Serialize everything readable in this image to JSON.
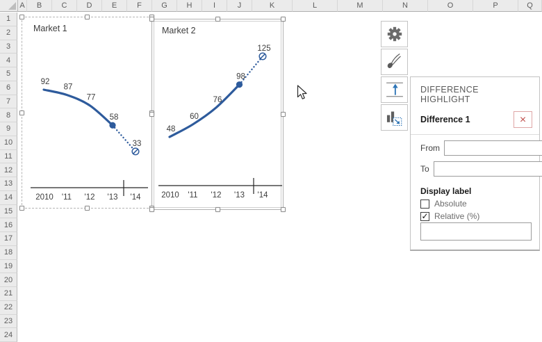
{
  "spreadsheet": {
    "column_headers": [
      "A",
      "B",
      "C",
      "D",
      "E",
      "F",
      "G",
      "H",
      "I",
      "J",
      "K",
      "L",
      "M",
      "N",
      "O",
      "P",
      "Q"
    ],
    "row_headers": [
      "1",
      "2",
      "3",
      "4",
      "5",
      "6",
      "7",
      "8",
      "9",
      "10",
      "11",
      "12",
      "13",
      "14",
      "15",
      "16",
      "17",
      "18",
      "19",
      "20",
      "21",
      "22",
      "23",
      "24"
    ]
  },
  "chart_data": [
    {
      "type": "line",
      "title": "Market 1",
      "categories": [
        "2010",
        "'11",
        "'12",
        "'13",
        "'14"
      ],
      "values": [
        92,
        87,
        77,
        58,
        33
      ],
      "data_labels": [
        "92",
        "87",
        "77",
        "58",
        "33"
      ],
      "solid_until_index": 3,
      "forecast_style": "dotted",
      "marker_at_index_3": "filled-circle",
      "marker_at_index_4": "circle-slash",
      "axis_tick_between": [
        "'13",
        "'14"
      ],
      "grid": "off",
      "legend": "none"
    },
    {
      "type": "line",
      "title": "Market 2",
      "categories": [
        "2010",
        "'11",
        "'12",
        "'13",
        "'14"
      ],
      "values": [
        48,
        60,
        76,
        98,
        125
      ],
      "data_labels": [
        "48",
        "60",
        "76",
        "98",
        "125"
      ],
      "solid_until_index": 3,
      "forecast_style": "dotted",
      "marker_at_index_3": "filled-circle",
      "marker_at_index_4": "circle-slash",
      "axis_tick_between": [
        "'13",
        "'14"
      ],
      "grid": "off",
      "legend": "none"
    }
  ],
  "toolbar": {
    "buttons": [
      {
        "name": "settings",
        "icon": "gear-icon"
      },
      {
        "name": "format-brush",
        "icon": "brush-icon"
      },
      {
        "name": "difference-highlight",
        "icon": "difference-arrow-icon"
      },
      {
        "name": "chart-series-tool",
        "icon": "mini-bar-chart-icon"
      }
    ]
  },
  "panel": {
    "title": "DIFFERENCE HIGHLIGHT",
    "item_title": "Difference 1",
    "remove_glyph": "×",
    "fields": [
      {
        "label": "From",
        "value": ""
      },
      {
        "label": "To",
        "value": ""
      }
    ],
    "display_label_heading": "Display label",
    "options": [
      {
        "label": "Absolute",
        "checked": false
      },
      {
        "label": "Relative (%)",
        "checked": true
      }
    ],
    "footer_value": ""
  },
  "colors": {
    "accent_line": "#2e5b9c",
    "icon_blue": "#2e75b6",
    "close_red": "#c0504d",
    "header_bg": "#ebebeb",
    "panel_title_gray": "#595959"
  }
}
